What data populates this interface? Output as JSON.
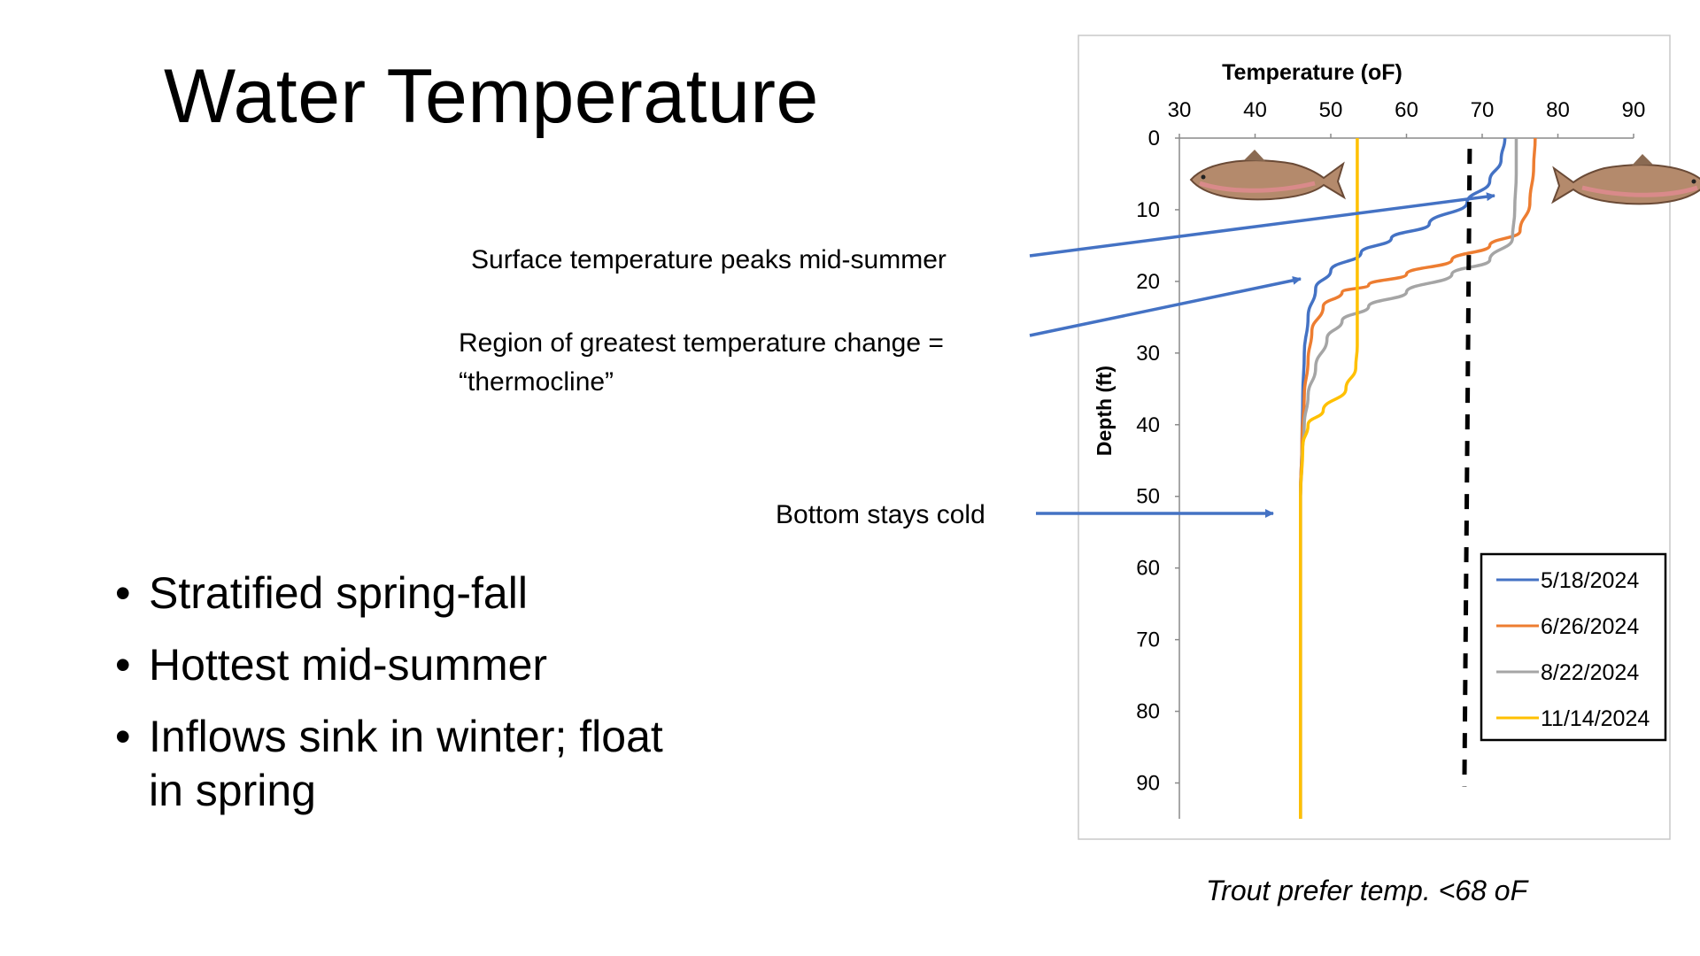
{
  "slide": {
    "title": "Water Temperature",
    "bullets": [
      "Stratified spring-fall",
      "Hottest mid-summer",
      "Inflows sink in winter; float in spring"
    ],
    "annotations": {
      "surface": "Surface temperature peaks mid-summer",
      "thermocline": "Region of greatest temperature change = “thermocline”",
      "bottom": "Bottom stays cold"
    },
    "caption": "Trout prefer temp. <68 oF",
    "arrow_color": "#4472c4"
  },
  "chart_data": {
    "type": "line",
    "xlabel": "Temperature (oF)",
    "ylabel": "Depth (ft)",
    "xlim": [
      30,
      90
    ],
    "ylim": [
      0,
      95
    ],
    "y_inverted": true,
    "x_axis_position": "top",
    "xticks": [
      30,
      40,
      50,
      60,
      70,
      80,
      90
    ],
    "yticks": [
      0,
      10,
      20,
      30,
      40,
      50,
      60,
      70,
      80,
      90
    ],
    "grid": false,
    "legend_position": "bottom-right",
    "reference_line": {
      "x": 68,
      "style": "dashed",
      "color": "#000000"
    },
    "series": [
      {
        "name": "5/18/2024",
        "color": "#4472c4",
        "points": [
          [
            73,
            0
          ],
          [
            72.5,
            3
          ],
          [
            71,
            6
          ],
          [
            68,
            9
          ],
          [
            63,
            12
          ],
          [
            58,
            14
          ],
          [
            54,
            16
          ],
          [
            50,
            18.5
          ],
          [
            48,
            21
          ],
          [
            47,
            25
          ],
          [
            46.5,
            30
          ],
          [
            46.3,
            36
          ],
          [
            46.2,
            42
          ],
          [
            46,
            50
          ],
          [
            46,
            60
          ],
          [
            46,
            70
          ],
          [
            46,
            80
          ],
          [
            46,
            90
          ],
          [
            46,
            95
          ]
        ]
      },
      {
        "name": "6/26/2024",
        "color": "#ed7d31",
        "points": [
          [
            77,
            0
          ],
          [
            76.8,
            4
          ],
          [
            76.3,
            9
          ],
          [
            75,
            13
          ],
          [
            71,
            15
          ],
          [
            66,
            17
          ],
          [
            60,
            19
          ],
          [
            55,
            20.5
          ],
          [
            51.5,
            21.5
          ],
          [
            49,
            23.5
          ],
          [
            47.5,
            27
          ],
          [
            47,
            31
          ],
          [
            46.5,
            36
          ],
          [
            46.2,
            42
          ],
          [
            46,
            50
          ],
          [
            46,
            60
          ],
          [
            46,
            70
          ],
          [
            46,
            80
          ],
          [
            46,
            90
          ],
          [
            46,
            95
          ]
        ]
      },
      {
        "name": "8/22/2024",
        "color": "#a5a5a5",
        "points": [
          [
            74.5,
            0
          ],
          [
            74.5,
            5
          ],
          [
            74.3,
            10
          ],
          [
            74,
            14
          ],
          [
            71,
            17
          ],
          [
            66,
            19
          ],
          [
            60,
            21.5
          ],
          [
            55,
            23.5
          ],
          [
            51.5,
            25.5
          ],
          [
            49.5,
            28
          ],
          [
            48,
            32
          ],
          [
            47,
            36
          ],
          [
            46.5,
            40
          ],
          [
            46.2,
            45
          ],
          [
            46,
            50
          ],
          [
            46,
            60
          ],
          [
            46,
            70
          ],
          [
            46,
            80
          ],
          [
            46,
            90
          ],
          [
            46,
            95
          ]
        ]
      },
      {
        "name": "11/14/2024",
        "color": "#ffc000",
        "points": [
          [
            53.5,
            0
          ],
          [
            53.5,
            10
          ],
          [
            53.5,
            20
          ],
          [
            53.5,
            29
          ],
          [
            53.3,
            32
          ],
          [
            52,
            35
          ],
          [
            49,
            38
          ],
          [
            47,
            40
          ],
          [
            46.3,
            43
          ],
          [
            46,
            50
          ],
          [
            46,
            60
          ],
          [
            46,
            70
          ],
          [
            46,
            80
          ],
          [
            46,
            90
          ],
          [
            46,
            95
          ]
        ]
      }
    ]
  }
}
